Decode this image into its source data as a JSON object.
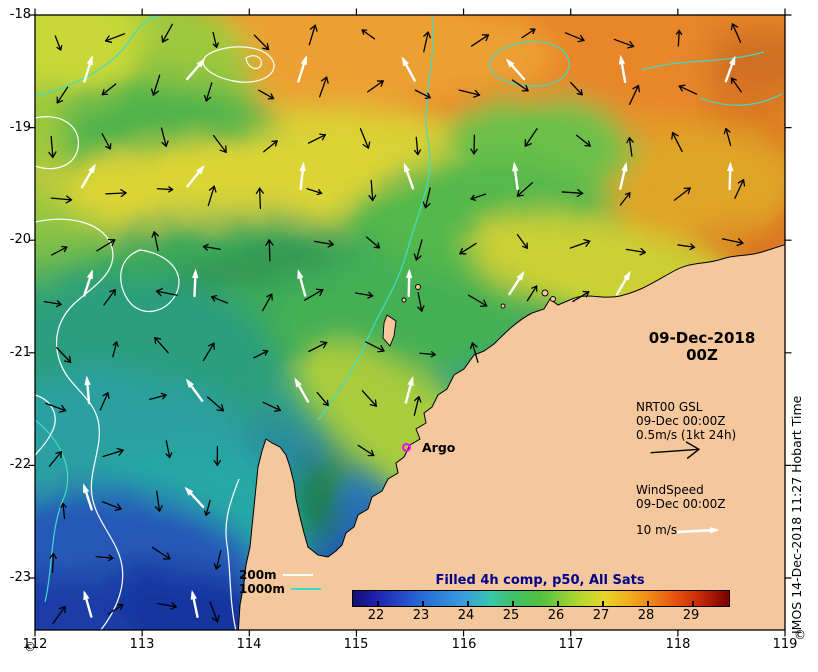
{
  "title_block": {
    "date": "09-Dec-2018",
    "time": "00Z"
  },
  "gsl_legend": {
    "name": "NRT00 GSL",
    "datetime": "09-Dec 00:00Z",
    "scale": "0.5m/s (1kt 24h)"
  },
  "wind_legend": {
    "name": "WindSpeed",
    "datetime": "09-Dec 00:00Z",
    "scale": "10 m/s"
  },
  "argo": {
    "label": "Argo"
  },
  "contour_legend": {
    "shelf": "200m",
    "slope": "1000m"
  },
  "colorbar": {
    "title": "Filled 4h comp, p50, All Sats",
    "ticks": [
      "22",
      "23",
      "24",
      "25",
      "26",
      "27",
      "28",
      "29"
    ]
  },
  "axes": {
    "x_ticks": [
      "112",
      "113",
      "114",
      "115",
      "116",
      "117",
      "118",
      "119"
    ],
    "y_ticks": [
      "-18",
      "-19",
      "-20",
      "-21",
      "-22",
      "-23"
    ]
  },
  "watermark": {
    "side_text": "IMOS 14-Dec-2018 11:27 Hobart Time",
    "copyright": "©"
  },
  "colors": {
    "land": "#f4c79c",
    "current_arrow": "#000000",
    "wind_arrow": "#ffffff",
    "contour_200m": "#ffffff",
    "contour_1000m": "#40dcc8",
    "argo_marker": "#ff00ff",
    "colorbar_title": "#00008b"
  }
}
